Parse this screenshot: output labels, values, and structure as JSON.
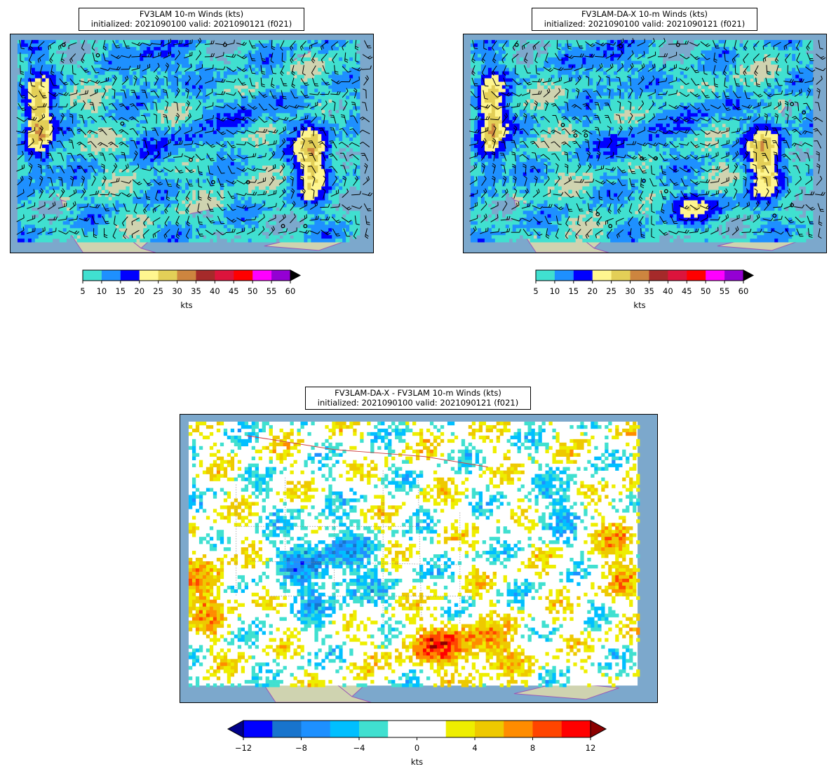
{
  "panels": {
    "left": {
      "title_line1": "FV3LAM 10-m Winds (kts)",
      "title_line2": "initialized: 2021090100 valid: 2021090121 (f021)"
    },
    "right": {
      "title_line1": "FV3LAM-DA-X 10-m Winds (kts)",
      "title_line2": "initialized: 2021090100 valid: 2021090121 (f021)"
    },
    "diff": {
      "title_line1": "FV3LAM-DA-X - FV3LAM 10-m Winds (kts)",
      "title_line2": "initialized: 2021090100 valid: 2021090121 (f021)"
    }
  },
  "speed_colorbar": {
    "units": "kts",
    "ticks": [
      "5",
      "10",
      "15",
      "20",
      "25",
      "30",
      "35",
      "40",
      "45",
      "50",
      "55",
      "60"
    ],
    "colors": [
      "#40e0d0",
      "#1e90ff",
      "#0000ff",
      "#fff68f",
      "#e3cf57",
      "#cd853f",
      "#a52a2a",
      "#dc143c",
      "#ff0000",
      "#ff00ff",
      "#9400d3"
    ],
    "extend": "max",
    "extend_color": "#000000"
  },
  "diff_colorbar": {
    "units": "kts",
    "ticks": [
      "−12",
      "−8",
      "−4",
      "0",
      "4",
      "8",
      "12"
    ],
    "colors": [
      "#0000ff",
      "#1874cd",
      "#1e90ff",
      "#00bfff",
      "#40e0d0",
      "#ffffff",
      "#ffffff",
      "#eeee00",
      "#eec900",
      "#ff8c00",
      "#ff4500",
      "#ff0000"
    ],
    "extend": "both",
    "extend_min_color": "#00008b",
    "extend_max_color": "#8b0000"
  },
  "colors": {
    "ocean": "#7ca8cc",
    "land": "#cfd3b0",
    "coast": "#9b59b6",
    "border": "#d04040"
  }
}
